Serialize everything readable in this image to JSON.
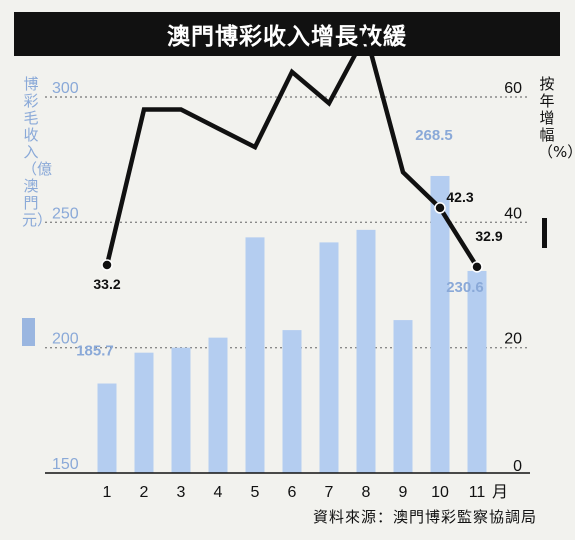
{
  "title": "澳門博彩收入增長放緩",
  "left_axis_label": "博彩毛收入（億澳門元）",
  "right_axis_label": "按年增幅（%）",
  "source": "資料來源：澳門博彩監察協調局",
  "colors": {
    "bar": "#b4cdf0",
    "line": "#111111",
    "left_axis_text": "#8aa9d8",
    "grid": "#8a8a8a"
  },
  "chart_data": {
    "type": "bar",
    "categories": [
      "1",
      "2",
      "3",
      "4",
      "5",
      "6",
      "7",
      "8",
      "9",
      "10",
      "11"
    ],
    "x_unit": "月",
    "series": [
      {
        "values": [
          185.7,
          198,
          200,
          204,
          244,
          207,
          242,
          247,
          211,
          268.5,
          230.6
        ],
        "axis": "left"
      },
      {
        "values": [
          33.2,
          58,
          58,
          55,
          52,
          64,
          59,
          70,
          48,
          42.3,
          32.9
        ],
        "axis": "right",
        "type": "line"
      }
    ],
    "left_axis": {
      "ylim": [
        150,
        300
      ],
      "ticks": [
        "150",
        "200",
        "250",
        "300"
      ]
    },
    "right_axis": {
      "ylim": [
        0,
        60
      ],
      "ticks": [
        "0",
        "20",
        "40",
        "60"
      ]
    },
    "bar_labels": {
      "0": "185.7",
      "9": "268.5",
      "10": "230.6"
    },
    "line_labels": {
      "0": "33.2",
      "9": "42.3",
      "10": "32.9"
    },
    "grid": true
  }
}
